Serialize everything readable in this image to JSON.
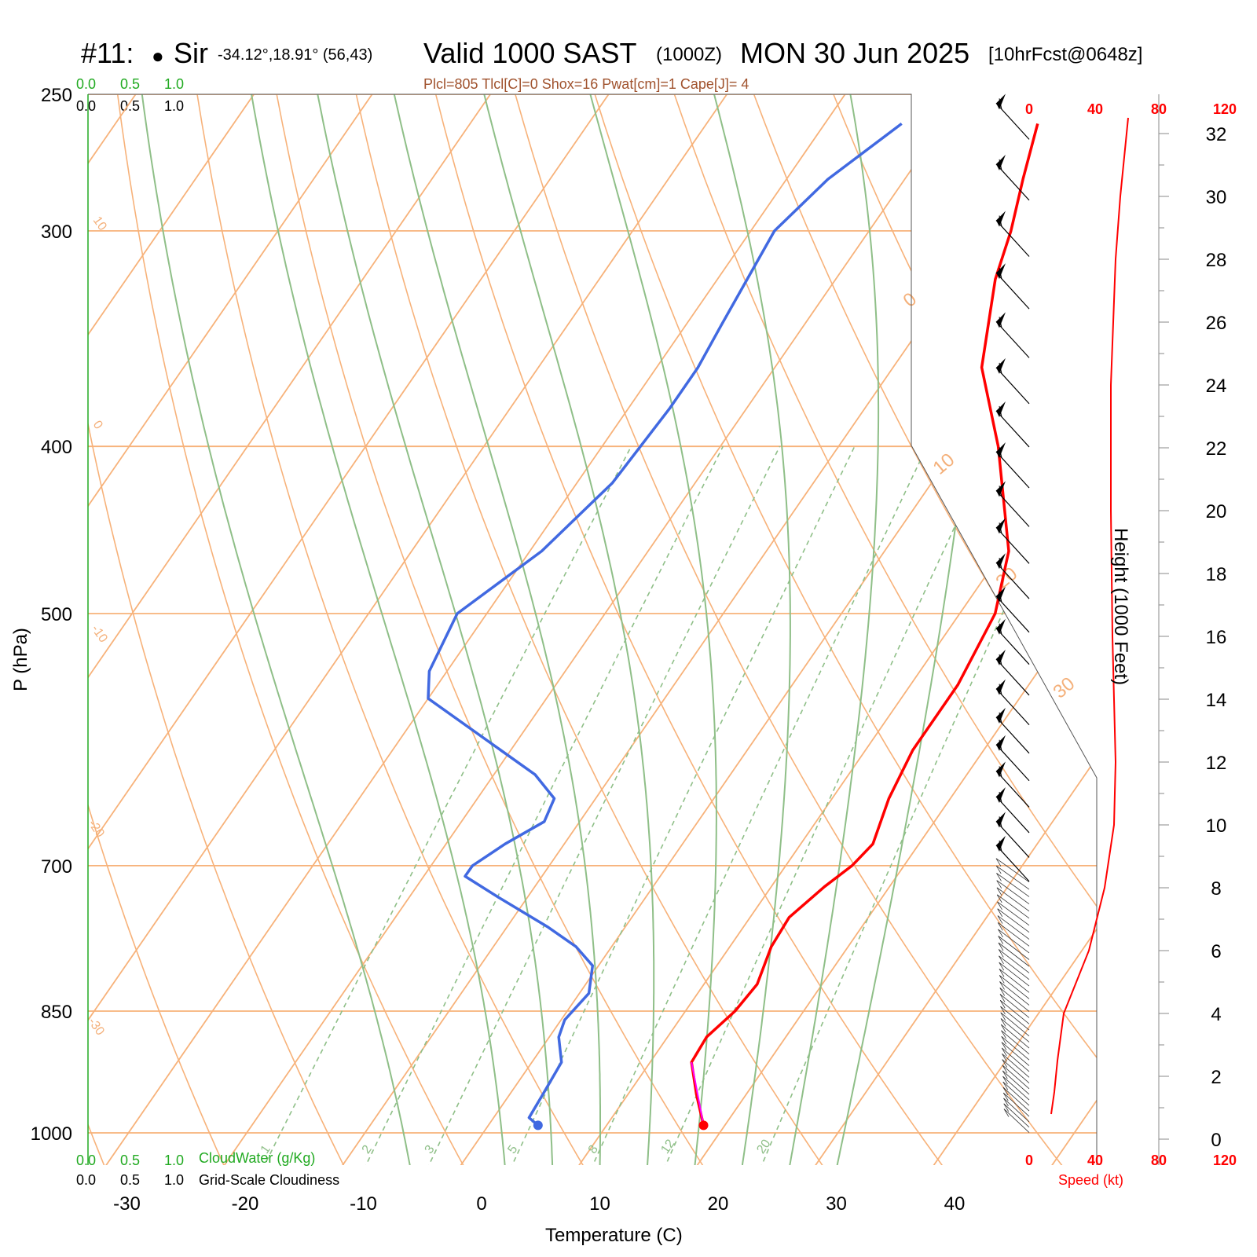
{
  "header": {
    "station": "#11:",
    "site_marker": "●",
    "site": "Sir",
    "coords": "-34.12°,18.91° (56,43)",
    "valid": "Valid 1000 SAST",
    "zulu": "(1000Z)",
    "date": "MON 30 Jun 2025",
    "forecast": "[10hrFcst@0648z]"
  },
  "params_line": "Plcl=805 Tlcl[C]=0 Shox=16 Pwat[cm]=1 Cape[J]= 4",
  "cloud_scale": {
    "green_values": [
      "0.0",
      "0.5",
      "1.0"
    ],
    "black_values": [
      "0.0",
      "0.5",
      "1.0"
    ],
    "green_label": "CloudWater (g/Kg)",
    "black_label": "Grid-Scale Cloudiness"
  },
  "speed_axis": {
    "ticks": [
      "0",
      "40",
      "80",
      "120"
    ],
    "label": "Speed (kt)"
  },
  "colors": {
    "temperature": "#ff0000",
    "dewpoint": "#4169e1",
    "isotherm": "#f7b27a",
    "moist_adiabat": "#8fbf88",
    "parcel": "#ff00ff"
  },
  "chart_data": {
    "type": "skew-t",
    "xlabel": "Temperature (C)",
    "ylabel": "P (hPa)",
    "y2label": "Height (1000 Feet)",
    "x_ticks": [
      -30,
      -20,
      -10,
      0,
      10,
      20,
      30,
      40
    ],
    "p_ticks": [
      250,
      300,
      400,
      500,
      700,
      850,
      1000
    ],
    "height_ticks": [
      0,
      2,
      4,
      6,
      8,
      10,
      12,
      14,
      16,
      18,
      20,
      22,
      24,
      26,
      28,
      30,
      32
    ],
    "isotherm_labels": [
      "10",
      "0",
      "-10",
      "-20",
      "-30",
      "0",
      "10",
      "20",
      "30"
    ],
    "mixing_ratio_labels": [
      "1",
      "2",
      "3",
      "5",
      "8",
      "12",
      "20"
    ],
    "temperature": [
      {
        "p": 990,
        "t": 18.2
      },
      {
        "p": 950,
        "t": 15.8
      },
      {
        "p": 910,
        "t": 13.5
      },
      {
        "p": 880,
        "t": 13.3
      },
      {
        "p": 850,
        "t": 14.2
      },
      {
        "p": 820,
        "t": 14.5
      },
      {
        "p": 780,
        "t": 13.5
      },
      {
        "p": 750,
        "t": 13.3
      },
      {
        "p": 720,
        "t": 14.5
      },
      {
        "p": 700,
        "t": 15.6
      },
      {
        "p": 680,
        "t": 16.1
      },
      {
        "p": 640,
        "t": 14.8
      },
      {
        "p": 600,
        "t": 14.0
      },
      {
        "p": 550,
        "t": 14.0
      },
      {
        "p": 500,
        "t": 13.0
      },
      {
        "p": 460,
        "t": 10.5
      },
      {
        "p": 400,
        "t": 3.5
      },
      {
        "p": 360,
        "t": -2.5
      },
      {
        "p": 320,
        "t": -6.5
      },
      {
        "p": 300,
        "t": -8.0
      },
      {
        "p": 280,
        "t": -10.0
      },
      {
        "p": 260,
        "t": -12.0
      }
    ],
    "dewpoint": [
      {
        "p": 990,
        "t": 4.2
      },
      {
        "p": 980,
        "t": 3.0
      },
      {
        "p": 950,
        "t": 2.8
      },
      {
        "p": 910,
        "t": 2.5
      },
      {
        "p": 880,
        "t": 0.8
      },
      {
        "p": 860,
        "t": 0.3
      },
      {
        "p": 830,
        "t": 0.8
      },
      {
        "p": 800,
        "t": -0.5
      },
      {
        "p": 780,
        "t": -3.0
      },
      {
        "p": 760,
        "t": -6.5
      },
      {
        "p": 730,
        "t": -12.5
      },
      {
        "p": 710,
        "t": -16.5
      },
      {
        "p": 700,
        "t": -16.5
      },
      {
        "p": 680,
        "t": -15.0
      },
      {
        "p": 660,
        "t": -13.0
      },
      {
        "p": 640,
        "t": -13.5
      },
      {
        "p": 620,
        "t": -16.5
      },
      {
        "p": 560,
        "t": -30.0
      },
      {
        "p": 540,
        "t": -31.5
      },
      {
        "p": 500,
        "t": -32.5
      },
      {
        "p": 460,
        "t": -29.0
      },
      {
        "p": 420,
        "t": -27.0
      },
      {
        "p": 380,
        "t": -26.5
      },
      {
        "p": 360,
        "t": -26.5
      },
      {
        "p": 340,
        "t": -27.0
      },
      {
        "p": 300,
        "t": -28.0
      },
      {
        "p": 280,
        "t": -26.5
      },
      {
        "p": 260,
        "t": -23.5
      }
    ],
    "wind_speed_kt": [
      {
        "h": 0.8,
        "v": 14
      },
      {
        "h": 1.5,
        "v": 16
      },
      {
        "h": 2.5,
        "v": 18
      },
      {
        "h": 4,
        "v": 22
      },
      {
        "h": 5,
        "v": 30
      },
      {
        "h": 6,
        "v": 38
      },
      {
        "h": 8,
        "v": 48
      },
      {
        "h": 10,
        "v": 54
      },
      {
        "h": 12,
        "v": 55
      },
      {
        "h": 16,
        "v": 53
      },
      {
        "h": 20,
        "v": 52
      },
      {
        "h": 24,
        "v": 52
      },
      {
        "h": 28,
        "v": 55
      },
      {
        "h": 30,
        "v": 58
      },
      {
        "h": 32.5,
        "v": 63
      }
    ]
  }
}
